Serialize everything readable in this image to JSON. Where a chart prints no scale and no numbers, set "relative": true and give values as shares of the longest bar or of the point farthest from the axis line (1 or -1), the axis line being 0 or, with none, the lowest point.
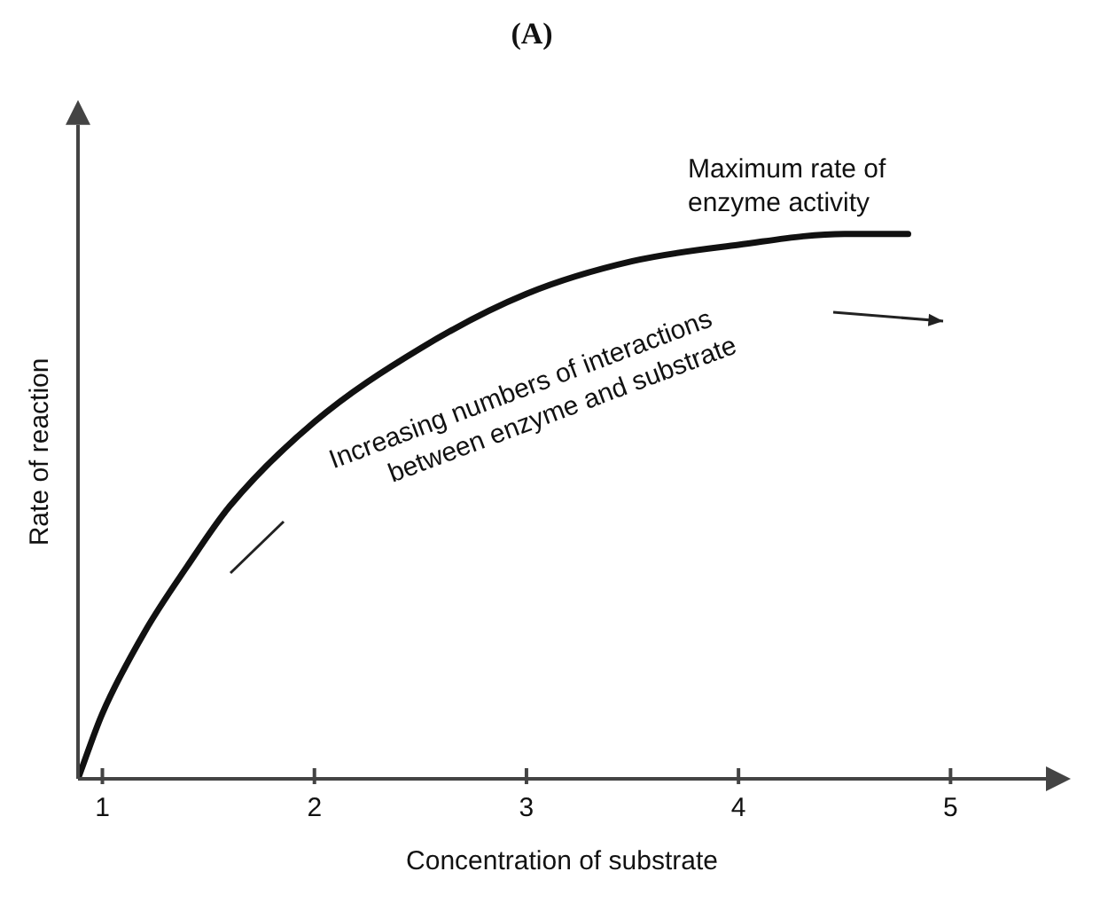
{
  "chart_data": {
    "type": "line",
    "title": "(A)",
    "xlabel": "Concentration of substrate",
    "ylabel": "Rate of reaction",
    "relative": true,
    "x": [
      0.885,
      1.0,
      1.2,
      1.4,
      1.6,
      2.0,
      2.5,
      3.0,
      3.5,
      4.0,
      4.5,
      4.8
    ],
    "series": [
      {
        "color": "#111111",
        "values": [
          0,
          0.12,
          0.27,
          0.39,
          0.5,
          0.655,
          0.79,
          0.89,
          0.95,
          0.98,
          1.0,
          1.0
        ]
      }
    ],
    "xlim": [
      0.885,
      5.45
    ],
    "xticks": [
      1,
      2,
      3,
      4,
      5
    ],
    "grid": false,
    "legend": false,
    "marker": "none",
    "line_style": "solid",
    "annotations": [
      "Maximum rate of enzyme activity",
      "Increasing numbers of interactions between enzyme and substrate"
    ]
  }
}
